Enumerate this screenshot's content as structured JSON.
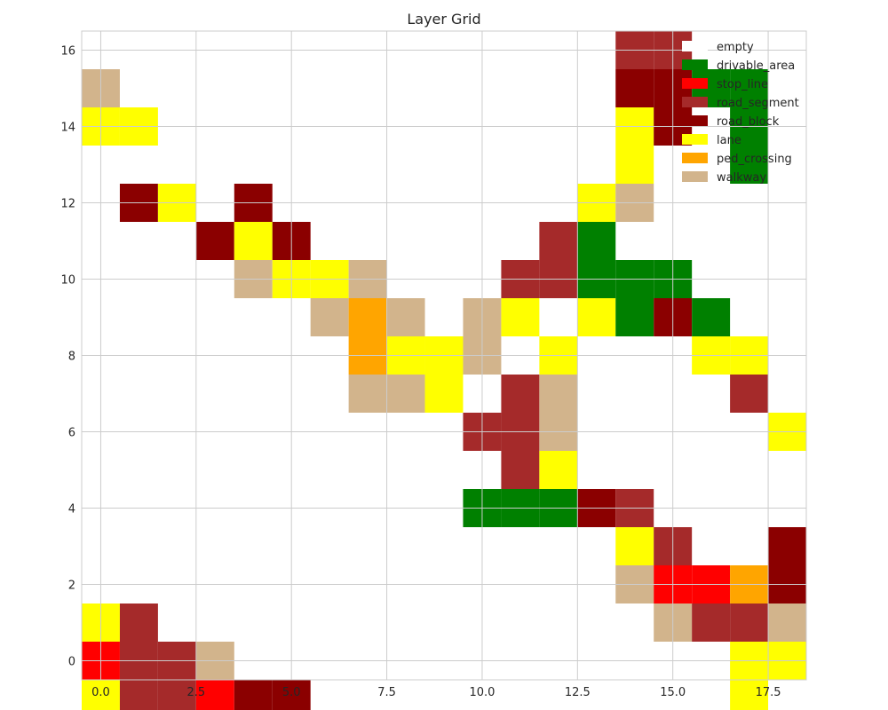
{
  "chart_data": {
    "type": "heatmap",
    "title": "Layer Grid",
    "xlabel": "",
    "ylabel": "",
    "xlim": [
      -0.5,
      18.5
    ],
    "ylim": [
      -0.5,
      16.5
    ],
    "x_ticks": [
      0,
      2.5,
      5,
      7.5,
      10,
      12.5,
      15,
      17.5
    ],
    "x_tick_labels": [
      "0.0",
      "2.5",
      "5.0",
      "7.5",
      "10.0",
      "12.5",
      "15.0",
      "17.5"
    ],
    "y_ticks": [
      0,
      2,
      4,
      6,
      8,
      10,
      12,
      14,
      16
    ],
    "y_tick_labels": [
      "0",
      "2",
      "4",
      "6",
      "8",
      "10",
      "12",
      "14",
      "16"
    ],
    "grid": true,
    "legend_position": "upper right",
    "layers": [
      {
        "name": "empty",
        "color": "#ffffff"
      },
      {
        "name": "drivable_area",
        "color": "#008000"
      },
      {
        "name": "stop_line",
        "color": "#ff0000"
      },
      {
        "name": "road_segment",
        "color": "#a52a2a"
      },
      {
        "name": "road_block",
        "color": "#8b0000"
      },
      {
        "name": "lane",
        "color": "#ffff00"
      },
      {
        "name": "ped_crossing",
        "color": "#ffa500"
      },
      {
        "name": "walkway",
        "color": "#d2b48c"
      }
    ],
    "grid_rows_top_to_bottom": [
      "..............33...",
      "7.............4411.",
      "55............54.1.",
      "..............5..1.",
      ".45.4........57....",
      "...454......31.....",
      "....7557...33111...",
      "......767.75.5141..",
      ".......6557.5...55.",
      ".......775.37....3.",
      "..........337.....5",
      "...........35......",
      "..........11143....",
      "..............53..4",
      "..............72264",
      "53.............7337",
      "2337.............55",
      "533244...........5."
    ],
    "legend_layer_codes": "0=empty 1=drivable_area 2=stop_line 3=road_segment 4=road_block 5=lane 6=ped_crossing 7=walkway"
  }
}
